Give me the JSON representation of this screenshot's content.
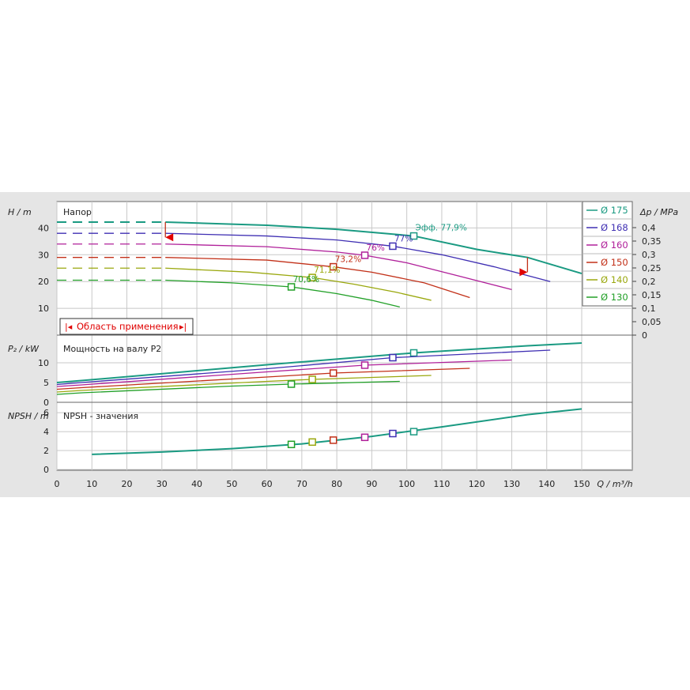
{
  "chart_data": [
    {
      "panel": "head",
      "type": "line",
      "ylabel": "H / m",
      "title": "Напор",
      "ylabel_right": "Δp / MPa",
      "xlim": [
        0,
        150
      ],
      "ylim": [
        0,
        46
      ],
      "yticks": [
        10,
        20,
        30,
        40
      ],
      "yticks_right": [
        "0",
        "0,05",
        "0,1",
        "0,15",
        "0,2",
        "0,25",
        "0,3",
        "0,35",
        "0,4"
      ],
      "application_range_label": "Область применения",
      "application_range": [
        31,
        134.5
      ],
      "series": [
        {
          "name": "Ø 175",
          "color": "#1a9a82",
          "dashed_until": 31,
          "x": [
            0,
            31,
            60,
            80,
            102,
            120,
            134.5,
            150
          ],
          "y": [
            42.2,
            42.2,
            41,
            39.5,
            37,
            32,
            29,
            23
          ],
          "bep_x": 102,
          "bep_y": 37,
          "bep_label": "Эфф.  77,9%"
        },
        {
          "name": "Ø 168",
          "color": "#3f2fb3",
          "dashed_until": 31,
          "x": [
            0,
            31,
            60,
            80,
            96,
            110,
            125,
            141
          ],
          "y": [
            38,
            38,
            37,
            35.5,
            33.2,
            30,
            25.5,
            20
          ],
          "bep_x": 96,
          "bep_y": 33.2,
          "bep_label": "77%"
        },
        {
          "name": "Ø 160",
          "color": "#b0209a",
          "dashed_until": 31,
          "x": [
            0,
            31,
            60,
            80,
            88,
            100,
            115,
            130
          ],
          "y": [
            34,
            34,
            33,
            31,
            29.8,
            27,
            22,
            17
          ],
          "bep_x": 88,
          "bep_y": 29.8,
          "bep_label": "76%"
        },
        {
          "name": "Ø 150",
          "color": "#c23018",
          "dashed_until": 31,
          "x": [
            0,
            31,
            60,
            79,
            90,
            105,
            118
          ],
          "y": [
            29,
            29,
            28,
            25.5,
            23.5,
            19.5,
            14
          ],
          "bep_x": 79,
          "bep_y": 25.5,
          "bep_label": "73,2%"
        },
        {
          "name": "Ø 140",
          "color": "#9aa80e",
          "dashed_until": 31,
          "x": [
            0,
            31,
            55,
            73,
            85,
            97,
            107
          ],
          "y": [
            25,
            25,
            23.5,
            21.5,
            19,
            16,
            13
          ],
          "bep_x": 73,
          "bep_y": 21.5,
          "bep_label": "71,1%"
        },
        {
          "name": "Ø 130",
          "color": "#22a028",
          "dashed_until": 31,
          "x": [
            0,
            31,
            50,
            67,
            80,
            90,
            98
          ],
          "y": [
            20.5,
            20.5,
            19.5,
            18,
            15.5,
            13,
            10.5
          ],
          "bep_x": 67,
          "bep_y": 18,
          "bep_label": "70,6%"
        }
      ]
    },
    {
      "panel": "power",
      "type": "line",
      "ylabel": "P₂ / kW",
      "title": "Мощность на валу P2",
      "xlim": [
        0,
        150
      ],
      "ylim": [
        0,
        16
      ],
      "yticks": [
        0,
        5,
        10
      ],
      "series": [
        {
          "name": "Ø 175",
          "color": "#1a9a82",
          "x": [
            0,
            7,
            60,
            102,
            134.5,
            150
          ],
          "y": [
            5,
            5.5,
            9.5,
            12.5,
            14.3,
            15
          ],
          "bep_x": 102,
          "bep_y": 12.5
        },
        {
          "name": "Ø 168",
          "color": "#3f2fb3",
          "x": [
            0,
            7,
            60,
            96,
            141
          ],
          "y": [
            4.5,
            5,
            8.5,
            11.3,
            13.2
          ],
          "bep_x": 96,
          "bep_y": 11.3
        },
        {
          "name": "Ø 160",
          "color": "#b0209a",
          "x": [
            0,
            7,
            60,
            88,
            130
          ],
          "y": [
            4,
            4.4,
            7.7,
            9.4,
            10.7
          ],
          "bep_x": 88,
          "bep_y": 9.4
        },
        {
          "name": "Ø 150",
          "color": "#c23018",
          "x": [
            0,
            7,
            60,
            79,
            118
          ],
          "y": [
            3.3,
            3.7,
            6.4,
            7.4,
            8.6
          ],
          "bep_x": 79,
          "bep_y": 7.4
        },
        {
          "name": "Ø 140",
          "color": "#9aa80e",
          "x": [
            0,
            7,
            60,
            73,
            107
          ],
          "y": [
            2.6,
            3,
            5.3,
            5.8,
            6.8
          ],
          "bep_x": 73,
          "bep_y": 5.8
        },
        {
          "name": "Ø 130",
          "color": "#22a028",
          "x": [
            0,
            7,
            50,
            67,
            98
          ],
          "y": [
            2,
            2.4,
            4.1,
            4.6,
            5.3
          ],
          "bep_x": 67,
          "bep_y": 4.6
        }
      ]
    },
    {
      "panel": "npsh",
      "type": "line",
      "ylabel": "NPSH / m",
      "title": "NPSH - значения",
      "xlabel": "Q / m³/h",
      "xlim": [
        0,
        150
      ],
      "ylim": [
        0,
        7
      ],
      "yticks": [
        0,
        2,
        4,
        6
      ],
      "xticks": [
        0,
        10,
        20,
        30,
        40,
        50,
        60,
        70,
        80,
        90,
        100,
        110,
        120,
        130,
        140,
        150
      ],
      "series": [
        {
          "name": "NPSH",
          "color": "#1a9a82",
          "x": [
            10,
            30,
            50,
            70,
            90,
            110,
            134.5,
            150
          ],
          "y": [
            1.6,
            1.85,
            2.2,
            2.7,
            3.5,
            4.5,
            5.8,
            6.4
          ]
        }
      ],
      "bep_markers": [
        {
          "x": 67,
          "y": 2.65,
          "color": "#22a028"
        },
        {
          "x": 73,
          "y": 2.9,
          "color": "#9aa80e"
        },
        {
          "x": 79,
          "y": 3.1,
          "color": "#c23018"
        },
        {
          "x": 88,
          "y": 3.4,
          "color": "#b0209a"
        },
        {
          "x": 96,
          "y": 3.8,
          "color": "#3f2fb3"
        },
        {
          "x": 102,
          "y": 4.0,
          "color": "#1a9a82"
        }
      ]
    }
  ]
}
